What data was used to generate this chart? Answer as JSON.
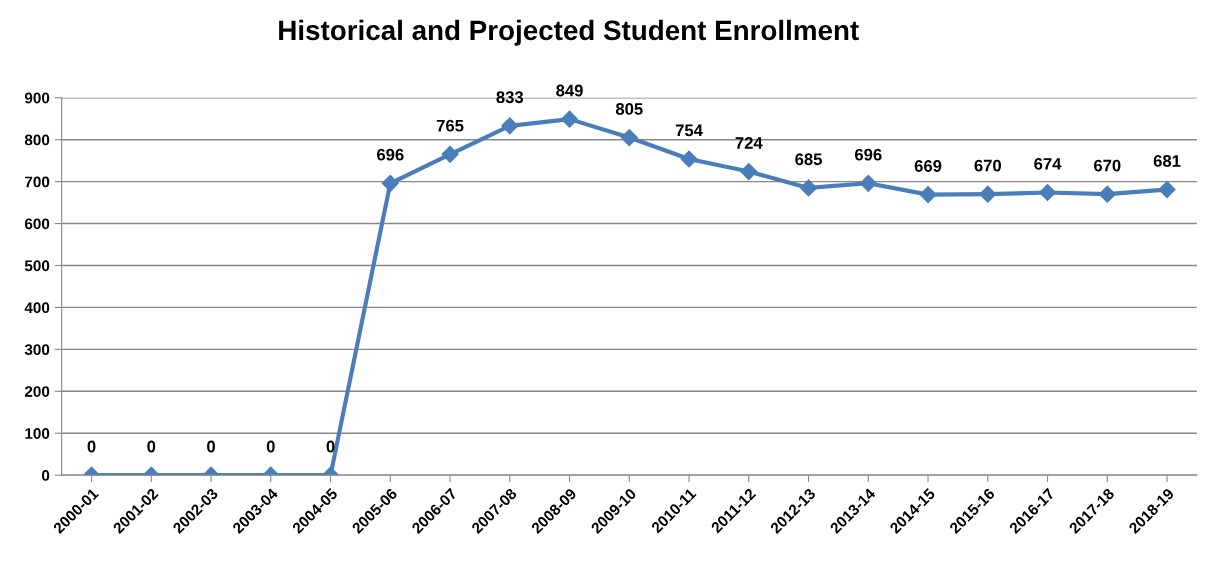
{
  "chart_data": {
    "type": "line",
    "title": "Historical and Projected Student Enrollment",
    "categories": [
      "2000-01",
      "2001-02",
      "2002-03",
      "2003-04",
      "2004-05",
      "2005-06",
      "2006-07",
      "2007-08",
      "2008-09",
      "2009-10",
      "2010-11",
      "2011-12",
      "2012-13",
      "2013-14",
      "2014-15",
      "2015-16",
      "2016-17",
      "2017-18",
      "2018-19"
    ],
    "series": [
      {
        "color": "#4a7ebb",
        "values": [
          0,
          0,
          0,
          0,
          0,
          696,
          765,
          833,
          849,
          805,
          754,
          724,
          685,
          696,
          669,
          670,
          674,
          670,
          681
        ]
      }
    ],
    "ylim": [
      0,
      900
    ],
    "yticks": [
      0,
      100,
      200,
      300,
      400,
      500,
      600,
      700,
      800,
      900
    ],
    "grid": "y",
    "marker": "diamond",
    "line_style": "solid",
    "data_labels": true,
    "legend": false
  }
}
